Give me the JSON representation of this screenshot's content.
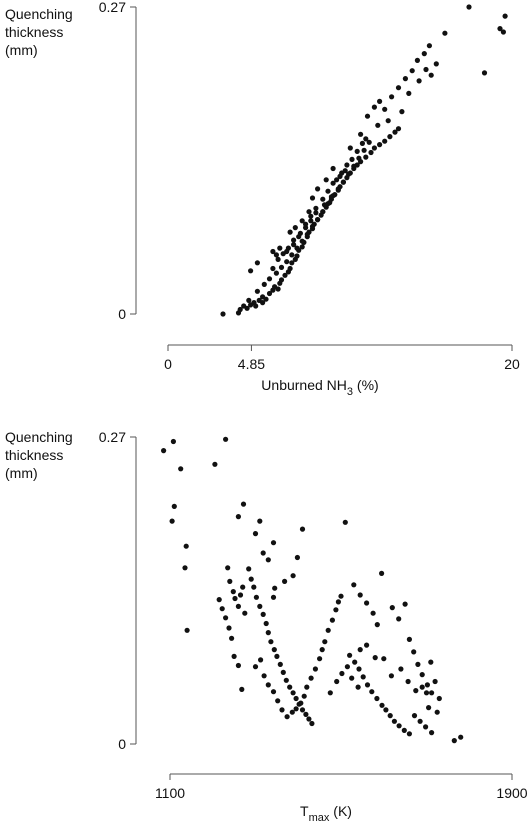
{
  "chart_data": [
    {
      "type": "scatter",
      "ylabel": "Quenching thickness (mm)",
      "ylabel_lines": [
        "Quenching",
        "thickness",
        "(mm)"
      ],
      "xlabel_main": "Unburned NH",
      "xlabel_sub": "3",
      "xlabel_tail": " (%)",
      "xlim": [
        0,
        20
      ],
      "ylim": [
        0,
        0.27
      ],
      "xticks": [
        0,
        4.85,
        20
      ],
      "xtick_labels": [
        "0",
        "4.85",
        "20"
      ],
      "yticks": [
        0,
        0.27
      ],
      "ytick_labels": [
        "0",
        "0.27"
      ],
      "points": [
        [
          3.2,
          0.0
        ],
        [
          4.1,
          0.001
        ],
        [
          4.2,
          0.004
        ],
        [
          4.4,
          0.007
        ],
        [
          4.6,
          0.005
        ],
        [
          4.8,
          0.008
        ],
        [
          5.0,
          0.01
        ],
        [
          5.1,
          0.007
        ],
        [
          5.3,
          0.012
        ],
        [
          5.5,
          0.015
        ],
        [
          5.5,
          0.01
        ],
        [
          5.7,
          0.013
        ],
        [
          5.9,
          0.018
        ],
        [
          6.1,
          0.021
        ],
        [
          6.2,
          0.024
        ],
        [
          6.4,
          0.022
        ],
        [
          6.5,
          0.027
        ],
        [
          6.6,
          0.03
        ],
        [
          6.8,
          0.034
        ],
        [
          7.0,
          0.037
        ],
        [
          7.1,
          0.04
        ],
        [
          7.2,
          0.045
        ],
        [
          7.4,
          0.048
        ],
        [
          7.5,
          0.051
        ],
        [
          7.6,
          0.056
        ],
        [
          7.8,
          0.059
        ],
        [
          7.9,
          0.063
        ],
        [
          8.1,
          0.068
        ],
        [
          8.2,
          0.072
        ],
        [
          8.4,
          0.075
        ],
        [
          8.5,
          0.079
        ],
        [
          8.7,
          0.083
        ],
        [
          8.9,
          0.087
        ],
        [
          9.0,
          0.09
        ],
        [
          9.2,
          0.094
        ],
        [
          9.4,
          0.098
        ],
        [
          9.5,
          0.101
        ],
        [
          9.7,
          0.105
        ],
        [
          9.9,
          0.109
        ],
        [
          10.0,
          0.112
        ],
        [
          10.2,
          0.116
        ],
        [
          10.4,
          0.12
        ],
        [
          10.6,
          0.124
        ],
        [
          10.8,
          0.128
        ],
        [
          11.0,
          0.131
        ],
        [
          11.2,
          0.134
        ],
        [
          11.5,
          0.138
        ],
        [
          11.8,
          0.142
        ],
        [
          12.0,
          0.146
        ],
        [
          12.3,
          0.149
        ],
        [
          12.6,
          0.152
        ],
        [
          12.9,
          0.156
        ],
        [
          13.2,
          0.16
        ],
        [
          13.4,
          0.163
        ],
        [
          4.7,
          0.012
        ],
        [
          5.2,
          0.02
        ],
        [
          5.6,
          0.026
        ],
        [
          5.9,
          0.031
        ],
        [
          6.3,
          0.036
        ],
        [
          6.6,
          0.041
        ],
        [
          6.9,
          0.046
        ],
        [
          7.2,
          0.052
        ],
        [
          7.5,
          0.058
        ],
        [
          7.8,
          0.064
        ],
        [
          8.1,
          0.07
        ],
        [
          8.4,
          0.077
        ],
        [
          8.7,
          0.083
        ],
        [
          9.0,
          0.09
        ],
        [
          9.3,
          0.097
        ],
        [
          9.6,
          0.104
        ],
        [
          9.9,
          0.11
        ],
        [
          10.2,
          0.116
        ],
        [
          10.5,
          0.123
        ],
        [
          10.8,
          0.13
        ],
        [
          11.1,
          0.137
        ],
        [
          11.4,
          0.144
        ],
        [
          11.7,
          0.151
        ],
        [
          6.3,
          0.052
        ],
        [
          6.5,
          0.058
        ],
        [
          6.9,
          0.055
        ],
        [
          7.3,
          0.061
        ],
        [
          7.6,
          0.068
        ],
        [
          8.0,
          0.076
        ],
        [
          8.3,
          0.082
        ],
        [
          8.6,
          0.089
        ],
        [
          9.1,
          0.096
        ],
        [
          9.5,
          0.103
        ],
        [
          9.8,
          0.118
        ],
        [
          10.1,
          0.124
        ],
        [
          10.4,
          0.131
        ],
        [
          10.7,
          0.136
        ],
        [
          11.0,
          0.143
        ],
        [
          11.3,
          0.15
        ],
        [
          6.1,
          0.04
        ],
        [
          6.4,
          0.048
        ],
        [
          6.7,
          0.053
        ],
        [
          7.0,
          0.058
        ],
        [
          7.3,
          0.065
        ],
        [
          7.7,
          0.071
        ],
        [
          8.0,
          0.079
        ],
        [
          8.3,
          0.086
        ],
        [
          8.6,
          0.093
        ],
        [
          9.0,
          0.101
        ],
        [
          9.3,
          0.108
        ],
        [
          9.6,
          0.115
        ],
        [
          10.0,
          0.121
        ],
        [
          10.3,
          0.126
        ],
        [
          4.8,
          0.038
        ],
        [
          5.2,
          0.045
        ],
        [
          6.1,
          0.055
        ],
        [
          7.1,
          0.072
        ],
        [
          7.4,
          0.076
        ],
        [
          7.8,
          0.082
        ],
        [
          8.2,
          0.09
        ],
        [
          8.4,
          0.102
        ],
        [
          8.7,
          0.11
        ],
        [
          9.2,
          0.118
        ],
        [
          9.6,
          0.128
        ],
        [
          10.6,
          0.146
        ],
        [
          11.2,
          0.158
        ],
        [
          11.6,
          0.174
        ],
        [
          12.0,
          0.182
        ],
        [
          12.3,
          0.187
        ],
        [
          12.6,
          0.18
        ],
        [
          13.0,
          0.191
        ],
        [
          13.4,
          0.199
        ],
        [
          13.8,
          0.207
        ],
        [
          14.2,
          0.214
        ],
        [
          14.5,
          0.223
        ],
        [
          14.9,
          0.229
        ],
        [
          15.2,
          0.236
        ],
        [
          15.6,
          0.22
        ],
        [
          16.1,
          0.247
        ],
        [
          17.5,
          0.27
        ],
        [
          18.4,
          0.212
        ],
        [
          19.3,
          0.251
        ],
        [
          19.5,
          0.248
        ],
        [
          19.6,
          0.262
        ],
        [
          11.5,
          0.154
        ],
        [
          12.2,
          0.166
        ],
        [
          12.8,
          0.17
        ],
        [
          13.6,
          0.178
        ],
        [
          14.0,
          0.194
        ],
        [
          14.6,
          0.205
        ],
        [
          15.0,
          0.215
        ],
        [
          15.3,
          0.21
        ]
      ]
    },
    {
      "type": "scatter",
      "ylabel": "Quenching thickness (mm)",
      "ylabel_lines": [
        "Quenching",
        "thickness",
        "(mm)"
      ],
      "xlabel_main": "T",
      "xlabel_sub": "max",
      "xlabel_tail": " (K)",
      "xlim": [
        1100,
        1900
      ],
      "ylim": [
        0,
        0.27
      ],
      "xticks": [
        1100,
        1900
      ],
      "xtick_labels": [
        "1100",
        "1900"
      ],
      "yticks": [
        0,
        0.27
      ],
      "ytick_labels": [
        "0",
        "0.27"
      ],
      "points": [
        [
          1085,
          0.258
        ],
        [
          1108,
          0.266
        ],
        [
          1125,
          0.242
        ],
        [
          1110,
          0.209
        ],
        [
          1105,
          0.196
        ],
        [
          1138,
          0.174
        ],
        [
          1135,
          0.155
        ],
        [
          1140,
          0.1
        ],
        [
          1205,
          0.246
        ],
        [
          1230,
          0.268
        ],
        [
          1260,
          0.2
        ],
        [
          1272,
          0.211
        ],
        [
          1310,
          0.196
        ],
        [
          1300,
          0.185
        ],
        [
          1318,
          0.168
        ],
        [
          1330,
          0.162
        ],
        [
          1342,
          0.177
        ],
        [
          1410,
          0.189
        ],
        [
          1398,
          0.164
        ],
        [
          1388,
          0.148
        ],
        [
          1368,
          0.143
        ],
        [
          1345,
          0.137
        ],
        [
          1342,
          0.129
        ],
        [
          1235,
          0.155
        ],
        [
          1240,
          0.143
        ],
        [
          1248,
          0.134
        ],
        [
          1252,
          0.128
        ],
        [
          1260,
          0.121
        ],
        [
          1265,
          0.131
        ],
        [
          1270,
          0.138
        ],
        [
          1275,
          0.115
        ],
        [
          1215,
          0.127
        ],
        [
          1222,
          0.119
        ],
        [
          1230,
          0.111
        ],
        [
          1238,
          0.102
        ],
        [
          1244,
          0.093
        ],
        [
          1250,
          0.077
        ],
        [
          1260,
          0.069
        ],
        [
          1268,
          0.048
        ],
        [
          1284,
          0.154
        ],
        [
          1290,
          0.145
        ],
        [
          1296,
          0.138
        ],
        [
          1302,
          0.129
        ],
        [
          1310,
          0.121
        ],
        [
          1318,
          0.114
        ],
        [
          1325,
          0.106
        ],
        [
          1330,
          0.098
        ],
        [
          1336,
          0.09
        ],
        [
          1344,
          0.083
        ],
        [
          1350,
          0.077
        ],
        [
          1358,
          0.07
        ],
        [
          1365,
          0.063
        ],
        [
          1372,
          0.056
        ],
        [
          1380,
          0.05
        ],
        [
          1388,
          0.045
        ],
        [
          1395,
          0.04
        ],
        [
          1402,
          0.035
        ],
        [
          1410,
          0.03
        ],
        [
          1418,
          0.026
        ],
        [
          1425,
          0.022
        ],
        [
          1432,
          0.018
        ],
        [
          1300,
          0.068
        ],
        [
          1312,
          0.074
        ],
        [
          1320,
          0.06
        ],
        [
          1330,
          0.052
        ],
        [
          1342,
          0.046
        ],
        [
          1352,
          0.038
        ],
        [
          1362,
          0.03
        ],
        [
          1374,
          0.024
        ],
        [
          1386,
          0.028
        ],
        [
          1395,
          0.031
        ],
        [
          1406,
          0.036
        ],
        [
          1414,
          0.042
        ],
        [
          1420,
          0.05
        ],
        [
          1430,
          0.058
        ],
        [
          1440,
          0.066
        ],
        [
          1450,
          0.075
        ],
        [
          1456,
          0.083
        ],
        [
          1462,
          0.09
        ],
        [
          1470,
          0.1
        ],
        [
          1480,
          0.109
        ],
        [
          1488,
          0.118
        ],
        [
          1494,
          0.125
        ],
        [
          1500,
          0.13
        ],
        [
          1510,
          0.195
        ],
        [
          1530,
          0.14
        ],
        [
          1545,
          0.131
        ],
        [
          1560,
          0.124
        ],
        [
          1575,
          0.115
        ],
        [
          1585,
          0.105
        ],
        [
          1595,
          0.15
        ],
        [
          1620,
          0.12
        ],
        [
          1635,
          0.11
        ],
        [
          1650,
          0.123
        ],
        [
          1660,
          0.092
        ],
        [
          1670,
          0.081
        ],
        [
          1680,
          0.07
        ],
        [
          1690,
          0.061
        ],
        [
          1702,
          0.052
        ],
        [
          1712,
          0.045
        ],
        [
          1520,
          0.078
        ],
        [
          1532,
          0.072
        ],
        [
          1542,
          0.066
        ],
        [
          1552,
          0.059
        ],
        [
          1562,
          0.052
        ],
        [
          1572,
          0.046
        ],
        [
          1584,
          0.04
        ],
        [
          1596,
          0.034
        ],
        [
          1605,
          0.03
        ],
        [
          1615,
          0.025
        ],
        [
          1625,
          0.02
        ],
        [
          1636,
          0.016
        ],
        [
          1648,
          0.012
        ],
        [
          1660,
          0.009
        ],
        [
          1672,
          0.025
        ],
        [
          1685,
          0.02
        ],
        [
          1698,
          0.015
        ],
        [
          1712,
          0.01
        ],
        [
          1475,
          0.045
        ],
        [
          1490,
          0.055
        ],
        [
          1502,
          0.062
        ],
        [
          1515,
          0.068
        ],
        [
          1525,
          0.058
        ],
        [
          1540,
          0.05
        ],
        [
          1690,
          0.05
        ],
        [
          1700,
          0.045
        ],
        [
          1710,
          0.072
        ],
        [
          1720,
          0.055
        ],
        [
          1730,
          0.04
        ],
        [
          1545,
          0.083
        ],
        [
          1560,
          0.087
        ],
        [
          1580,
          0.076
        ],
        [
          1600,
          0.075
        ],
        [
          1618,
          0.06
        ],
        [
          1640,
          0.066
        ],
        [
          1657,
          0.055
        ],
        [
          1675,
          0.047
        ],
        [
          1705,
          0.032
        ],
        [
          1725,
          0.028
        ],
        [
          1765,
          0.003
        ],
        [
          1780,
          0.006
        ]
      ]
    }
  ]
}
